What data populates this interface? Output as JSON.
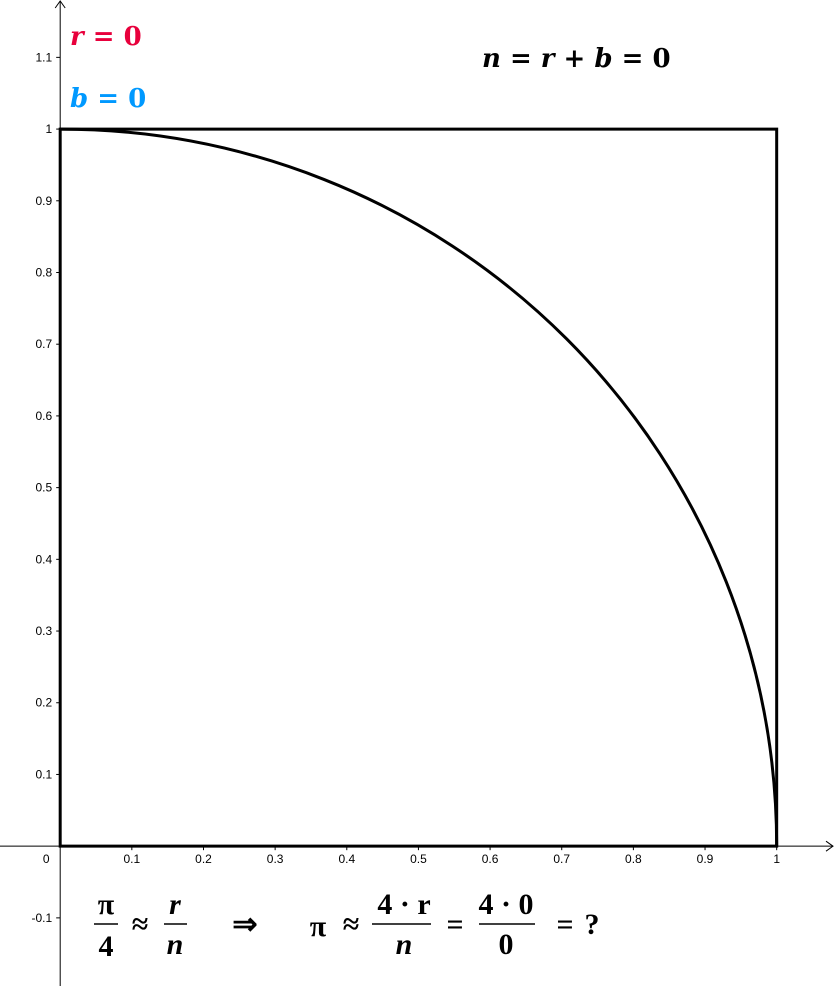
{
  "chart_data": {
    "type": "line",
    "title": "",
    "xlabel": "",
    "ylabel": "",
    "xlim": [
      -0.084,
      1.08
    ],
    "ylim": [
      -0.195,
      1.18
    ],
    "grid": false,
    "x_ticks": [
      "0",
      "0.1",
      "0.2",
      "0.3",
      "0.4",
      "0.5",
      "0.6",
      "0.7",
      "0.8",
      "0.9",
      "1"
    ],
    "y_ticks": [
      "-0.1",
      "0.1",
      "0.2",
      "0.3",
      "0.4",
      "0.5",
      "0.6",
      "0.7",
      "0.8",
      "0.9",
      "1",
      "1.1"
    ],
    "shapes": [
      {
        "kind": "square",
        "corners": [
          [
            0,
            0
          ],
          [
            1,
            0
          ],
          [
            1,
            1
          ],
          [
            0,
            1
          ]
        ],
        "color": "#000000"
      },
      {
        "kind": "quarter-circle",
        "center": [
          0,
          0
        ],
        "radius": 1,
        "color": "#000000"
      }
    ]
  },
  "labels": {
    "r_label": {
      "var": "r",
      "eq": " = 0",
      "color": "#e8003c"
    },
    "b_label": {
      "var": "b",
      "eq": " = 0",
      "color": "#0099ff"
    },
    "n_formula": {
      "n": "n",
      "eq1": " = ",
      "r": "r",
      "plus": " + ",
      "b": "b",
      "eq2": " = 0"
    }
  },
  "formula": {
    "pi": "π",
    "four": "4",
    "approx": "≈",
    "r": "r",
    "n": "n",
    "implies": "⇒",
    "num1": "4 · r",
    "num2": "4 · 0",
    "den2": "0",
    "equals": "=",
    "result": "?"
  }
}
